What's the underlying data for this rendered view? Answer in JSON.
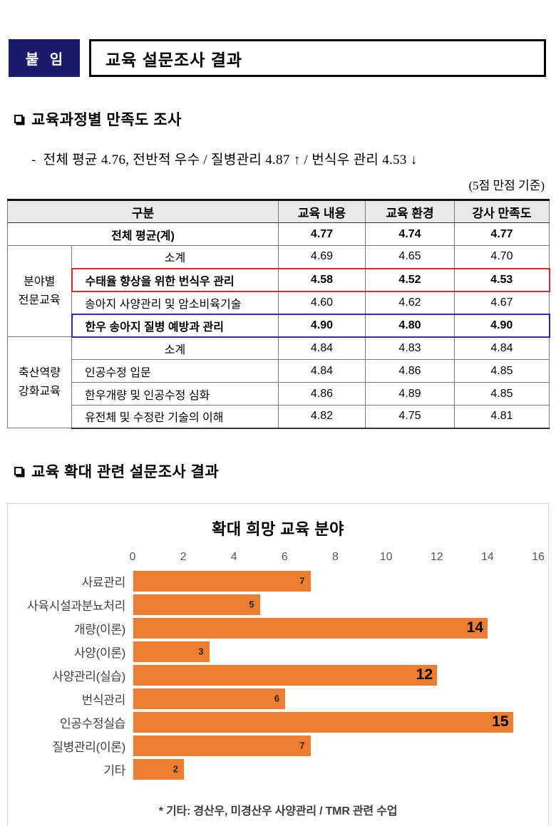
{
  "header": {
    "badge_label": "붙 임",
    "title": "교육 설문조사 결과"
  },
  "sections": {
    "satisfaction": {
      "heading": "교육과정별 만족도 조사",
      "dash": "-",
      "summary": "전체 평균 4.76, 전반적 우수 / 질병관리 4.87 ↑ / 번식우 관리 4.53 ↓",
      "note": "(5점 만점 기준)"
    },
    "expansion": {
      "heading": "교육 확대 관련 설문조사 결과"
    }
  },
  "table": {
    "headers": [
      "구분",
      "교육 내용",
      "교육 환경",
      "강사 만족도"
    ],
    "total_row": {
      "label": "전체 평균(계)",
      "values": [
        "4.77",
        "4.74",
        "4.77"
      ]
    },
    "groups": [
      {
        "label": "분야별\n전문교육",
        "rows": [
          {
            "name": "소계",
            "values": [
              "4.69",
              "4.65",
              "4.70"
            ]
          },
          {
            "name": "수태율 향상을 위한 번식우 관리",
            "values": [
              "4.58",
              "4.52",
              "4.53"
            ]
          },
          {
            "name": "송아지 사양관리 및 암소비육기술",
            "values": [
              "4.60",
              "4.62",
              "4.67"
            ]
          },
          {
            "name": "한우 송아지 질병 예방과 관리",
            "values": [
              "4.90",
              "4.80",
              "4.90"
            ]
          }
        ]
      },
      {
        "label": "축산역량\n강화교육",
        "rows": [
          {
            "name": "소계",
            "values": [
              "4.84",
              "4.83",
              "4.84"
            ]
          },
          {
            "name": "인공수정 입문",
            "values": [
              "4.84",
              "4.86",
              "4.85"
            ]
          },
          {
            "name": "한우개량 및 인공수정 심화",
            "values": [
              "4.86",
              "4.89",
              "4.85"
            ]
          },
          {
            "name": "유전체 및 수정란 기술의 이해",
            "values": [
              "4.82",
              "4.75",
              "4.81"
            ]
          }
        ]
      }
    ]
  },
  "chart_data": {
    "type": "bar",
    "orientation": "horizontal",
    "title": "확대 희망 교육 분야",
    "categories": [
      "사료관리",
      "사육시설과분뇨처리",
      "개량(이론)",
      "사양(이론)",
      "사양관리(실습)",
      "번식관리",
      "인공수정실습",
      "질병관리(이론)",
      "기타"
    ],
    "values": [
      7,
      5,
      14,
      3,
      12,
      6,
      15,
      7,
      2
    ],
    "emphasized_indices": [
      2,
      4,
      6
    ],
    "xlim": [
      0,
      16
    ],
    "xticks": [
      "0",
      "2",
      "4",
      "6",
      "8",
      "10",
      "12",
      "14",
      "16"
    ],
    "bar_color": "#ED7D31",
    "grid": false,
    "legend": false,
    "footnote": "* 기타: 경산우, 미경산우 사양관리 / TMR 관련 수업"
  }
}
